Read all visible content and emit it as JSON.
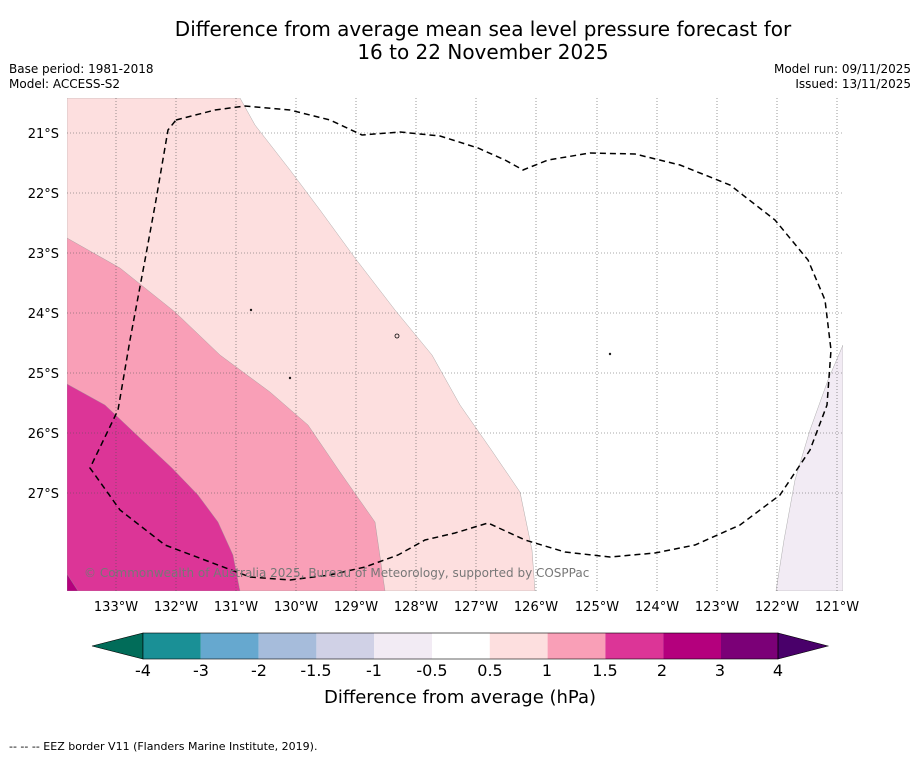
{
  "header": {
    "title_line1": "Difference from average mean sea level pressure forecast for",
    "title_line2": "16 to 22 November 2025",
    "base_period": "Base period: 1981-2018",
    "model": "Model: ACCESS-S2",
    "model_run": "Model run: 09/11/2025",
    "issued": "Issued: 13/11/2025"
  },
  "map": {
    "lat_labels": [
      "21°S",
      "22°S",
      "23°S",
      "24°S",
      "25°S",
      "26°S",
      "27°S"
    ],
    "lon_labels": [
      "133°W",
      "132°W",
      "131°W",
      "130°W",
      "129°W",
      "128°W",
      "127°W",
      "126°W",
      "125°W",
      "124°W",
      "123°W",
      "122°W",
      "121°W"
    ],
    "copyright": "© Commonwealth of Australia 2025, Bureau of Meteorology, supported by COSPPac",
    "colors": {
      "band_0_5_1": "#fddfdf",
      "band_1_1_5": "#f99fb7",
      "band_1_5_2": "#dc3597",
      "band_2_3": "#b4007d",
      "band_neg1_neg0_5": "#f2ebf4"
    }
  },
  "colorbar": {
    "ticks": [
      "-4",
      "-3",
      "-2",
      "-1.5",
      "-1",
      "-0.5",
      "0.5",
      "1",
      "1.5",
      "2",
      "3",
      "4"
    ],
    "colors": [
      "#1a9096",
      "#66a8cf",
      "#a6bcdb",
      "#d0d1e6",
      "#f2ebf4",
      "#ffffff",
      "#fddfdf",
      "#f99fb7",
      "#dc3597",
      "#b4007d",
      "#7b0077"
    ],
    "under_color": "#016c59",
    "over_color": "#49006a",
    "label": "Difference from average (hPa)"
  },
  "footer": {
    "legend_text": "--  --  -- EEZ border V11 (Flanders Marine Institute, 2019)."
  }
}
